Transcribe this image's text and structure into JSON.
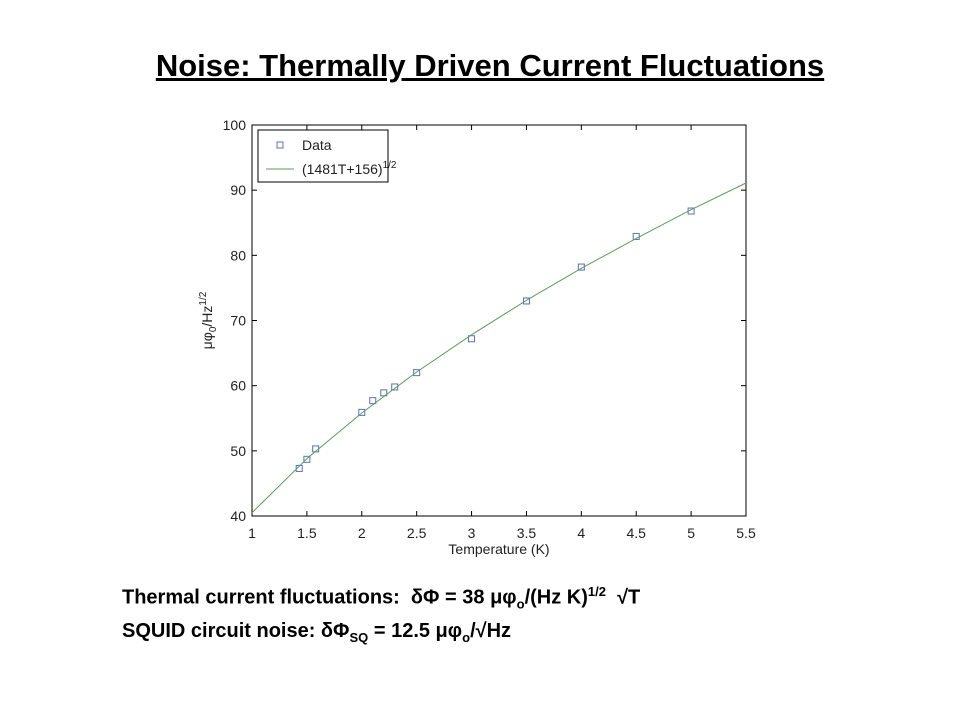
{
  "title": "Noise: Thermally Driven Current Fluctuations",
  "chart_data": {
    "type": "scatter",
    "xlabel": "Temperature (K)",
    "ylabel": [
      {
        "t": "μφ"
      },
      {
        "t": "0",
        "s": "sub"
      },
      {
        "t": "/Hz"
      },
      {
        "t": "1/2",
        "s": "sup"
      }
    ],
    "xlim": [
      1,
      5.5
    ],
    "xticks": [
      1,
      1.5,
      2,
      2.5,
      3,
      3.5,
      4,
      4.5,
      5,
      5.5
    ],
    "ylim": [
      40,
      100
    ],
    "yticks": [
      40,
      50,
      60,
      70,
      80,
      90,
      100
    ],
    "grid": false,
    "legend": "upper left",
    "series": [
      {
        "name": "Data",
        "type": "scatter",
        "color": "#5b70b5",
        "x": [
          1.43,
          1.5,
          1.58,
          2.0,
          2.1,
          2.2,
          2.3,
          2.5,
          3.0,
          3.5,
          4.0,
          4.5,
          5.0
        ],
        "values": [
          47.3,
          48.7,
          50.3,
          55.9,
          57.7,
          58.9,
          59.8,
          62.0,
          67.2,
          73.0,
          78.2,
          82.9,
          86.8
        ]
      },
      {
        "name": "(1481T+156)",
        "name_sup": "1/2",
        "type": "line",
        "color": "#5a9e5a",
        "x": [
          1,
          1.5,
          2,
          2.5,
          3,
          3.5,
          4,
          4.5,
          5,
          5.5
        ],
        "values": [
          40.5,
          48.8,
          55.8,
          62.1,
          67.8,
          73.1,
          78.0,
          82.6,
          87.0,
          91.1
        ]
      }
    ]
  },
  "notes": [
    [
      {
        "t": "Thermal current fluctuations:  δΦ = 38 μφ"
      },
      {
        "t": "o",
        "s": "sub"
      },
      {
        "t": "/(Hz K)"
      },
      {
        "t": "1/2",
        "s": "sup"
      },
      {
        "t": "  √T"
      }
    ],
    [
      {
        "t": "SQUID circuit noise: δΦ"
      },
      {
        "t": "SQ",
        "s": "sub"
      },
      {
        "t": " = 12.5 μφ"
      },
      {
        "t": "o",
        "s": "sub"
      },
      {
        "t": "/√Hz"
      }
    ]
  ]
}
